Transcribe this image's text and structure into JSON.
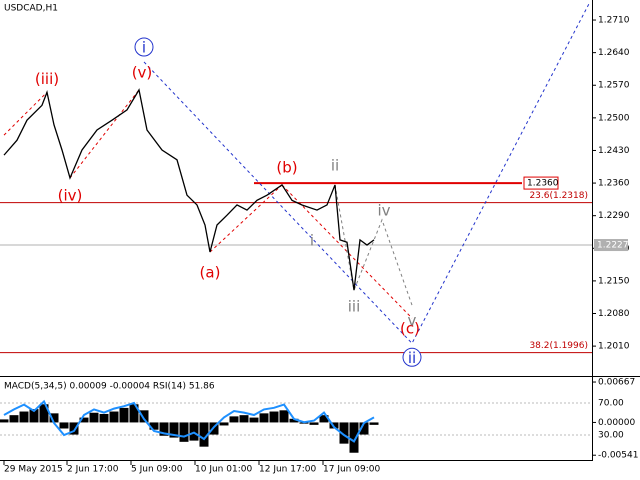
{
  "chart_data": [
    {
      "type": "line",
      "title": "USDCAD,H1",
      "color": "#000000",
      "x": [
        0,
        13,
        23,
        38,
        43,
        50,
        58,
        66,
        78,
        93,
        108,
        123,
        135,
        143,
        158,
        173,
        183,
        193,
        201,
        206,
        213,
        223,
        233,
        243,
        253,
        263,
        278,
        288,
        298,
        313,
        323,
        331,
        336,
        343,
        350,
        356,
        363,
        370
      ],
      "values": [
        1.242,
        1.2452,
        1.2495,
        1.2527,
        1.2555,
        1.2485,
        1.2431,
        1.2371,
        1.2431,
        1.2474,
        1.2495,
        1.2517,
        1.256,
        1.2474,
        1.2431,
        1.241,
        1.2334,
        1.2313,
        1.227,
        1.2212,
        1.227,
        1.2291,
        1.2313,
        1.2302,
        1.2323,
        1.2334,
        1.2356,
        1.2323,
        1.2313,
        1.2302,
        1.2313,
        1.2356,
        1.2238,
        1.2233,
        1.213,
        1.2238,
        1.2227,
        1.2238
      ],
      "xlim": [
        -2,
        590
      ],
      "ylim": [
        1.1948,
        1.2753
      ],
      "xticks": [
        {
          "value": 0,
          "label": "29 May 2015"
        },
        {
          "value": 63,
          "label": "2 Jun 17:00"
        },
        {
          "value": 127,
          "label": "5 Jun 09:00"
        },
        {
          "value": 191,
          "label": "10 Jun 01:00"
        },
        {
          "value": 255,
          "label": "12 Jun 17:00"
        },
        {
          "value": 319,
          "label": "17 Jun 09:00"
        }
      ],
      "yticks": [
        {
          "value": 1.201,
          "label": "1.2010"
        },
        {
          "value": 1.208,
          "label": "1.2080"
        },
        {
          "value": 1.215,
          "label": "1.2150"
        },
        {
          "value": 1.222,
          "label": "1.2220"
        },
        {
          "value": 1.229,
          "label": "1.2290"
        },
        {
          "value": 1.236,
          "label": "1.2360"
        },
        {
          "value": 1.243,
          "label": "1.2430"
        },
        {
          "value": 1.25,
          "label": "1.2500"
        },
        {
          "value": 1.257,
          "label": "1.2570"
        },
        {
          "value": 1.264,
          "label": "1.2640"
        },
        {
          "value": 1.271,
          "label": "1.2710"
        }
      ],
      "hlines": [
        {
          "value": 1.236,
          "label": "1.2360",
          "color": "#e00000",
          "x": [
            250,
            518
          ]
        },
        {
          "value": 1.2318,
          "label": "23.6(1.2318)",
          "color": "#c00000"
        },
        {
          "value": 1.1996,
          "label": "38.2(1.1996)",
          "color": "#c00000"
        },
        {
          "value": 1.2227,
          "label": "1.2227",
          "color": "#b0b0b0"
        }
      ],
      "projections": [
        {
          "color": "#2233cc",
          "points": [
            [
              140,
              1.262
            ],
            [
              408,
              1.2016
            ],
            [
              586,
              1.2749
            ]
          ]
        },
        {
          "color": "#e00000",
          "points": [
            [
              0,
              1.2463
            ],
            [
              43,
              1.2555
            ]
          ]
        },
        {
          "color": "#e00000",
          "points": [
            [
              66,
              1.2371
            ],
            [
              135,
              1.256
            ]
          ]
        },
        {
          "color": "#e00000",
          "points": [
            [
              206,
              1.2212
            ],
            [
              278,
              1.2356
            ]
          ]
        },
        {
          "color": "#e00000",
          "points": [
            [
              278,
              1.2356
            ],
            [
              408,
              1.207
            ]
          ]
        },
        {
          "color": "#808080",
          "points": [
            [
              331,
              1.2356
            ],
            [
              350,
              1.213
            ],
            [
              378,
              1.2281
            ],
            [
              408,
              1.2098
            ]
          ]
        }
      ],
      "annotations": [
        {
          "text": "i",
          "x": 140,
          "y": 1.2652,
          "color": "#2233cc",
          "circle": true
        },
        {
          "text": "ii",
          "x": 408,
          "y": 1.1986,
          "color": "#2233cc",
          "circle": true
        },
        {
          "text": "(iii)",
          "x": 43,
          "y": 1.2585,
          "color": "#e00000"
        },
        {
          "text": "(iv)",
          "x": 66,
          "y": 1.2334,
          "color": "#e00000"
        },
        {
          "text": "(v)",
          "x": 138,
          "y": 1.2598,
          "color": "#e00000"
        },
        {
          "text": "(a)",
          "x": 206,
          "y": 1.2169,
          "color": "#e00000"
        },
        {
          "text": "(b)",
          "x": 283,
          "y": 1.2394,
          "color": "#e00000"
        },
        {
          "text": "(c)",
          "x": 406,
          "y": 1.2049,
          "color": "#e00000"
        },
        {
          "text": "ii",
          "x": 331,
          "y": 1.2399,
          "color": "#808080"
        },
        {
          "text": "i",
          "x": 308,
          "y": 1.2238,
          "color": "#808080"
        },
        {
          "text": "iii",
          "x": 350,
          "y": 1.2096,
          "color": "#808080"
        },
        {
          "text": "iv",
          "x": 380,
          "y": 1.2302,
          "color": "#808080"
        },
        {
          "text": "v",
          "x": 408,
          "y": 1.2066,
          "color": "#808080"
        }
      ]
    },
    {
      "type": "macd",
      "title": "MACD(5,34,5) 0.00009 -0.00004 RSI(14) 51.86",
      "x": [
        0,
        10,
        20,
        30,
        40,
        50,
        60,
        70,
        80,
        90,
        100,
        110,
        120,
        130,
        140,
        150,
        160,
        170,
        180,
        190,
        200,
        210,
        220,
        230,
        240,
        250,
        260,
        270,
        280,
        290,
        300,
        310,
        320,
        330,
        340,
        350,
        360,
        370
      ],
      "series": [
        {
          "color": "#000000",
          "values": [
            0.0005,
            0.0012,
            0.0018,
            0.0022,
            0.003,
            0.0015,
            -0.001,
            -0.002,
            0.0008,
            0.0016,
            0.0014,
            0.0018,
            0.0024,
            0.003,
            0.002,
            -0.0012,
            -0.0022,
            -0.0025,
            -0.0032,
            -0.003,
            -0.004,
            -0.002,
            -0.0005,
            0.001,
            0.0012,
            0.0008,
            0.0015,
            0.0018,
            0.002,
            0.0006,
            -0.0002,
            -0.0004,
            0.0012,
            -0.001,
            -0.0035,
            -0.005,
            -0.002,
            -0.0004
          ]
        },
        {
          "color": "#1e90ff",
          "axis": "y2",
          "values": [
            55,
            62,
            68,
            60,
            72,
            45,
            30,
            35,
            55,
            62,
            58,
            63,
            66,
            70,
            50,
            35,
            32,
            30,
            28,
            33,
            25,
            40,
            52,
            60,
            58,
            55,
            62,
            64,
            68,
            50,
            46,
            48,
            58,
            40,
            30,
            22,
            45,
            52
          ]
        }
      ],
      "xlim": [
        -2,
        590
      ],
      "ylim": [
        -0.0062,
        0.0075
      ],
      "y2lim": [
        -1.25,
        102.5
      ],
      "yticks": [
        0.00667,
        {
          "value": 0,
          "label": "0.00000"
        },
        -0.00541
      ],
      "y2ticks": [
        {
          "value": 70,
          "label": "70.00"
        },
        {
          "value": 30,
          "label": "30.00"
        }
      ]
    }
  ]
}
